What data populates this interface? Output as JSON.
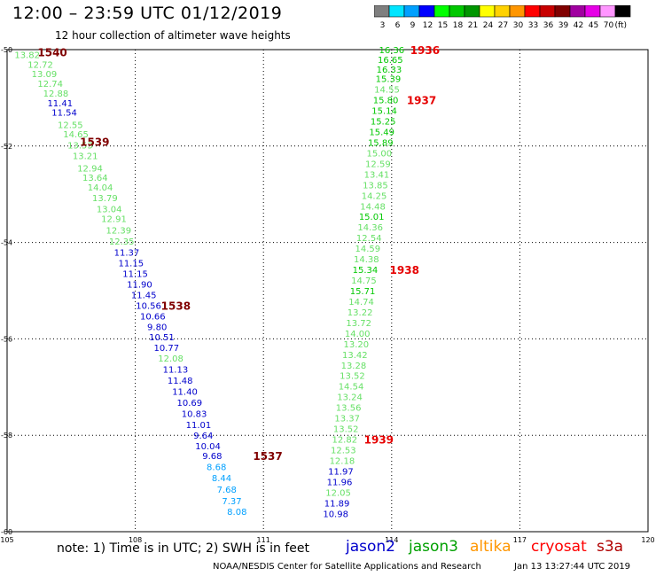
{
  "header": {
    "title": "12:00 – 23:59 UTC 01/12/2019",
    "subtitle": "12 hour collection of altimeter wave heights"
  },
  "colorbar": {
    "unit": "(ft)",
    "bins": [
      {
        "label": "3",
        "color": "#7f7f7f"
      },
      {
        "label": "6",
        "color": "#00e5ff"
      },
      {
        "label": "9",
        "color": "#00a0ff"
      },
      {
        "label": "12",
        "color": "#0000ff"
      },
      {
        "label": "15",
        "color": "#00ff00"
      },
      {
        "label": "18",
        "color": "#00c800"
      },
      {
        "label": "21",
        "color": "#009600"
      },
      {
        "label": "24",
        "color": "#ffff00"
      },
      {
        "label": "27",
        "color": "#ffd200"
      },
      {
        "label": "30",
        "color": "#ff9600"
      },
      {
        "label": "33",
        "color": "#ff0000"
      },
      {
        "label": "36",
        "color": "#c80000"
      },
      {
        "label": "39",
        "color": "#800000"
      },
      {
        "label": "42",
        "color": "#a000a0"
      },
      {
        "label": "45",
        "color": "#e600e6"
      },
      {
        "label": "70",
        "color": "#ff96ff"
      },
      {
        "label": "",
        "color": "#000000"
      }
    ]
  },
  "legend": [
    {
      "name": "jason2",
      "color": "#0000cc"
    },
    {
      "name": "jason3",
      "color": "#00a000"
    },
    {
      "name": "altika",
      "color": "#ff9600"
    },
    {
      "name": "cryosat",
      "color": "#ff0000"
    },
    {
      "name": "s3a",
      "color": "#b00000"
    }
  ],
  "footer": {
    "note": "note: 1) Time is in UTC; 2) SWH is in feet",
    "credit": "NOAA/NESDIS Center for Satellite Applications and Research",
    "timestamp": "Jan 13 13:27:44 UTC 2019"
  },
  "chart_data": {
    "type": "scatter",
    "title": "12:00 – 23:59 UTC 01/12/2019",
    "subtitle": "12 hour collection of altimeter wave heights",
    "xlim": [
      105,
      120
    ],
    "ylim": [
      -60,
      -50
    ],
    "x_ticks": [
      105,
      108,
      111,
      114,
      117,
      120
    ],
    "x_tick_labels": [
      "105",
      "108",
      "111",
      "114",
      "117",
      "120"
    ],
    "y_ticks": [
      -50,
      -52,
      -54,
      -56,
      -58,
      -60
    ],
    "y_tick_labels": [
      "-50",
      "-52",
      "-54",
      "-56",
      "-58",
      "-60"
    ],
    "grid": true,
    "legend_position": "bottom",
    "series": [
      {
        "name": "",
        "points": [
          {
            "x": 105.47,
            "y": -50.1,
            "label": "13.82",
            "color": "#66e066"
          },
          {
            "x": 105.78,
            "y": -50.3,
            "label": "12.72",
            "color": "#66e066"
          },
          {
            "x": 105.87,
            "y": -50.5,
            "label": "13.09",
            "color": "#66e066"
          },
          {
            "x": 106.01,
            "y": -50.7,
            "label": "12.74",
            "color": "#66e066"
          },
          {
            "x": 106.14,
            "y": -50.9,
            "label": "12.88",
            "color": "#66e066"
          },
          {
            "x": 106.24,
            "y": -51.1,
            "label": "11.41",
            "color": "#0000cc"
          },
          {
            "x": 106.34,
            "y": -51.3,
            "label": "11.54",
            "color": "#0000cc"
          },
          {
            "x": 106.48,
            "y": -51.55,
            "label": "12.55",
            "color": "#66e066"
          },
          {
            "x": 106.61,
            "y": -51.75,
            "label": "14.65",
            "color": "#66e066"
          },
          {
            "x": 106.71,
            "y": -51.98,
            "label": "13.53",
            "color": "#66e066"
          },
          {
            "x": 106.83,
            "y": -52.2,
            "label": "13.21",
            "color": "#66e066"
          },
          {
            "x": 106.94,
            "y": -52.45,
            "label": "12.94",
            "color": "#66e066"
          },
          {
            "x": 107.06,
            "y": -52.65,
            "label": "13.64",
            "color": "#66e066"
          },
          {
            "x": 107.18,
            "y": -52.85,
            "label": "14.04",
            "color": "#66e066"
          },
          {
            "x": 107.29,
            "y": -53.07,
            "label": "13.79",
            "color": "#66e066"
          },
          {
            "x": 107.39,
            "y": -53.3,
            "label": "13.04",
            "color": "#66e066"
          },
          {
            "x": 107.5,
            "y": -53.5,
            "label": "12.91",
            "color": "#66e066"
          },
          {
            "x": 107.61,
            "y": -53.74,
            "label": "12.39",
            "color": "#66e066"
          },
          {
            "x": 107.68,
            "y": -53.97,
            "label": "12.35",
            "color": "#66e066"
          },
          {
            "x": 107.8,
            "y": -54.2,
            "label": "11.37",
            "color": "#0000cc"
          },
          {
            "x": 107.9,
            "y": -54.42,
            "label": "11.15",
            "color": "#0000cc"
          },
          {
            "x": 108.0,
            "y": -54.64,
            "label": "11.15",
            "color": "#0000cc"
          },
          {
            "x": 108.1,
            "y": -54.86,
            "label": "11.90",
            "color": "#0000cc"
          },
          {
            "x": 108.2,
            "y": -55.08,
            "label": "11.45",
            "color": "#0000cc"
          },
          {
            "x": 108.31,
            "y": -55.3,
            "label": "10.56",
            "color": "#0000cc"
          },
          {
            "x": 108.41,
            "y": -55.52,
            "label": "10.66",
            "color": "#0000cc"
          },
          {
            "x": 108.51,
            "y": -55.74,
            "label": "9.80",
            "color": "#0000cc"
          },
          {
            "x": 108.62,
            "y": -55.96,
            "label": "10.51",
            "color": "#0000cc"
          },
          {
            "x": 108.73,
            "y": -56.18,
            "label": "10.77",
            "color": "#0000cc"
          },
          {
            "x": 108.83,
            "y": -56.4,
            "label": "12.08",
            "color": "#66e066"
          },
          {
            "x": 108.94,
            "y": -56.63,
            "label": "11.13",
            "color": "#0000cc"
          },
          {
            "x": 109.05,
            "y": -56.86,
            "label": "11.48",
            "color": "#0000cc"
          },
          {
            "x": 109.16,
            "y": -57.09,
            "label": "11.40",
            "color": "#0000cc"
          },
          {
            "x": 109.27,
            "y": -57.32,
            "label": "10.69",
            "color": "#0000cc"
          },
          {
            "x": 109.38,
            "y": -57.55,
            "label": "10.83",
            "color": "#0000cc"
          },
          {
            "x": 109.48,
            "y": -57.78,
            "label": "11.01",
            "color": "#0000cc"
          },
          {
            "x": 109.59,
            "y": -58.0,
            "label": "9.64",
            "color": "#0000cc"
          },
          {
            "x": 109.7,
            "y": -58.22,
            "label": "10.04",
            "color": "#0000cc"
          },
          {
            "x": 109.8,
            "y": -58.42,
            "label": "9.68",
            "color": "#0000cc"
          },
          {
            "x": 109.9,
            "y": -58.65,
            "label": "8.68",
            "color": "#00a0ff"
          },
          {
            "x": 110.02,
            "y": -58.88,
            "label": "8.44",
            "color": "#00a0ff"
          },
          {
            "x": 110.14,
            "y": -59.12,
            "label": "7.68",
            "color": "#00a0ff"
          },
          {
            "x": 110.26,
            "y": -59.36,
            "label": "7.37",
            "color": "#00a0ff"
          },
          {
            "x": 110.38,
            "y": -59.58,
            "label": "8.08",
            "color": "#00a0ff"
          },
          {
            "x": 114.0,
            "y": -50.0,
            "label": "16.36",
            "color": "#00c800"
          },
          {
            "x": 113.97,
            "y": -50.2,
            "label": "16.65",
            "color": "#00c800"
          },
          {
            "x": 113.94,
            "y": -50.4,
            "label": "16.33",
            "color": "#00c800"
          },
          {
            "x": 113.92,
            "y": -50.6,
            "label": "15.39",
            "color": "#00c800"
          },
          {
            "x": 113.89,
            "y": -50.82,
            "label": "14.55",
            "color": "#66e066"
          },
          {
            "x": 113.86,
            "y": -51.04,
            "label": "15.80",
            "color": "#00c800"
          },
          {
            "x": 113.83,
            "y": -51.26,
            "label": "15.14",
            "color": "#00c800"
          },
          {
            "x": 113.8,
            "y": -51.48,
            "label": "15.25",
            "color": "#00c800"
          },
          {
            "x": 113.77,
            "y": -51.7,
            "label": "15.49",
            "color": "#00c800"
          },
          {
            "x": 113.74,
            "y": -51.92,
            "label": "15.89",
            "color": "#00c800"
          },
          {
            "x": 113.71,
            "y": -52.14,
            "label": "15.00",
            "color": "#66e066"
          },
          {
            "x": 113.68,
            "y": -52.36,
            "label": "12.59",
            "color": "#66e066"
          },
          {
            "x": 113.65,
            "y": -52.58,
            "label": "13.41",
            "color": "#66e066"
          },
          {
            "x": 113.62,
            "y": -52.8,
            "label": "13.85",
            "color": "#66e066"
          },
          {
            "x": 113.59,
            "y": -53.02,
            "label": "14.25",
            "color": "#66e066"
          },
          {
            "x": 113.56,
            "y": -53.24,
            "label": "14.48",
            "color": "#66e066"
          },
          {
            "x": 113.53,
            "y": -53.46,
            "label": "15.01",
            "color": "#00c800"
          },
          {
            "x": 113.5,
            "y": -53.68,
            "label": "14.36",
            "color": "#66e066"
          },
          {
            "x": 113.47,
            "y": -53.9,
            "label": "12.54",
            "color": "#66e066"
          },
          {
            "x": 113.44,
            "y": -54.12,
            "label": "14.59",
            "color": "#66e066"
          },
          {
            "x": 113.41,
            "y": -54.34,
            "label": "14.38",
            "color": "#66e066"
          },
          {
            "x": 113.38,
            "y": -54.56,
            "label": "15.34",
            "color": "#00c800"
          },
          {
            "x": 113.35,
            "y": -54.78,
            "label": "14.75",
            "color": "#66e066"
          },
          {
            "x": 113.32,
            "y": -55.0,
            "label": "15.71",
            "color": "#00c800"
          },
          {
            "x": 113.29,
            "y": -55.22,
            "label": "14.74",
            "color": "#66e066"
          },
          {
            "x": 113.26,
            "y": -55.44,
            "label": "13.22",
            "color": "#66e066"
          },
          {
            "x": 113.23,
            "y": -55.66,
            "label": "13.72",
            "color": "#66e066"
          },
          {
            "x": 113.2,
            "y": -55.88,
            "label": "14.00",
            "color": "#66e066"
          },
          {
            "x": 113.17,
            "y": -56.1,
            "label": "13.20",
            "color": "#66e066"
          },
          {
            "x": 113.14,
            "y": -56.32,
            "label": "13.42",
            "color": "#66e066"
          },
          {
            "x": 113.11,
            "y": -56.54,
            "label": "13.28",
            "color": "#66e066"
          },
          {
            "x": 113.08,
            "y": -56.76,
            "label": "13.52",
            "color": "#66e066"
          },
          {
            "x": 113.05,
            "y": -56.98,
            "label": "14.54",
            "color": "#66e066"
          },
          {
            "x": 113.02,
            "y": -57.2,
            "label": "13.24",
            "color": "#66e066"
          },
          {
            "x": 112.99,
            "y": -57.42,
            "label": "13.56",
            "color": "#66e066"
          },
          {
            "x": 112.96,
            "y": -57.64,
            "label": "13.37",
            "color": "#66e066"
          },
          {
            "x": 112.93,
            "y": -57.86,
            "label": "13.52",
            "color": "#66e066"
          },
          {
            "x": 112.9,
            "y": -58.08,
            "label": "12.82",
            "color": "#66e066"
          },
          {
            "x": 112.87,
            "y": -58.3,
            "label": "12.53",
            "color": "#66e066"
          },
          {
            "x": 112.84,
            "y": -58.52,
            "label": "12.18",
            "color": "#66e066"
          },
          {
            "x": 112.81,
            "y": -58.74,
            "label": "11.97",
            "color": "#0000cc"
          },
          {
            "x": 112.78,
            "y": -58.96,
            "label": "11.96",
            "color": "#0000cc"
          },
          {
            "x": 112.75,
            "y": -59.18,
            "label": "12.05",
            "color": "#66e066"
          },
          {
            "x": 112.72,
            "y": -59.4,
            "label": "11.89",
            "color": "#0000cc"
          },
          {
            "x": 112.69,
            "y": -59.62,
            "label": "10.98",
            "color": "#0000cc"
          }
        ]
      }
    ],
    "annotations": [
      {
        "x": 106.06,
        "y": -50.05,
        "text": "1540",
        "color": "#800000"
      },
      {
        "x": 107.05,
        "y": -51.9,
        "text": "1539",
        "color": "#800000"
      },
      {
        "x": 108.95,
        "y": -55.3,
        "text": "1538",
        "color": "#800000"
      },
      {
        "x": 111.1,
        "y": -58.42,
        "text": "1537",
        "color": "#800000"
      },
      {
        "x": 114.78,
        "y": -50.0,
        "text": "1936",
        "color": "#e60000"
      },
      {
        "x": 114.7,
        "y": -51.04,
        "text": "1937",
        "color": "#e60000"
      },
      {
        "x": 114.3,
        "y": -54.56,
        "text": "1938",
        "color": "#e60000"
      },
      {
        "x": 113.7,
        "y": -58.08,
        "text": "1939",
        "color": "#e60000"
      }
    ]
  }
}
